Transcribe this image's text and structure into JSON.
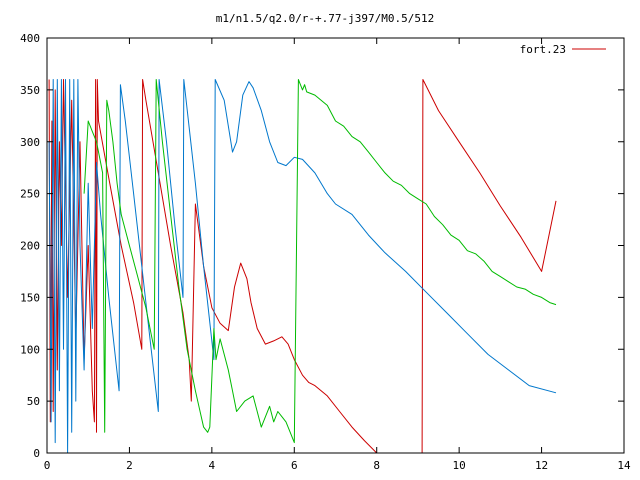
{
  "chart_data": {
    "type": "line",
    "title": "m1/n1.5/q2.0/r-+.77-j397/M0.5/512",
    "xlabel": "",
    "ylabel": "",
    "xlim": [
      0,
      14
    ],
    "ylim": [
      0,
      400
    ],
    "xticks": [
      0,
      2,
      4,
      6,
      8,
      10,
      12,
      14
    ],
    "yticks": [
      0,
      50,
      100,
      150,
      200,
      250,
      300,
      350,
      400
    ],
    "grid": false,
    "legend_position": "top-right",
    "legend": [
      {
        "label": "fort.23",
        "color": "#cc0000"
      }
    ],
    "series": [
      {
        "color": "#cc0000",
        "x": [
          0.05,
          0.08,
          0.12,
          0.15,
          0.2,
          0.25,
          0.3,
          0.35,
          0.4,
          0.5,
          0.6,
          0.7,
          0.8,
          0.9,
          1.0,
          1.1,
          1.15,
          1.18,
          1.2,
          1.22,
          1.25,
          1.5,
          1.8,
          2.1,
          2.3,
          2.32,
          2.4,
          2.7,
          3.0,
          3.3,
          3.45,
          3.5,
          3.6,
          3.8,
          4.0,
          4.2,
          4.4,
          4.55,
          4.7,
          4.85,
          4.95,
          5.1,
          5.3,
          5.5,
          5.7,
          5.85,
          6.0,
          6.2,
          6.35,
          6.5,
          6.8,
          7.1,
          7.4,
          7.7,
          8.0,
          8.4,
          8.8,
          9.1,
          9.12,
          9.5,
          10.0,
          10.5,
          11.0,
          11.5,
          12.0,
          12.35
        ],
        "y": [
          360,
          30,
          320,
          40,
          350,
          80,
          300,
          200,
          360,
          150,
          340,
          110,
          300,
          90,
          200,
          60,
          30,
          360,
          20,
          360,
          320,
          265,
          200,
          145,
          100,
          360,
          340,
          270,
          200,
          135,
          90,
          50,
          240,
          180,
          140,
          125,
          118,
          160,
          183,
          168,
          145,
          120,
          105,
          108,
          112,
          105,
          90,
          75,
          68,
          65,
          55,
          40,
          25,
          12,
          0,
          0,
          0,
          0,
          360,
          330,
          300,
          270,
          238,
          208,
          175,
          243
        ]
      },
      {
        "color": "#0077cc",
        "x": [
          0.05,
          0.1,
          0.15,
          0.2,
          0.25,
          0.3,
          0.35,
          0.4,
          0.45,
          0.5,
          0.55,
          0.6,
          0.65,
          0.7,
          0.75,
          0.8,
          0.9,
          1.0,
          1.1,
          1.2,
          1.3,
          1.5,
          1.75,
          1.78,
          1.9,
          2.1,
          2.3,
          2.5,
          2.7,
          2.72,
          2.9,
          3.1,
          3.3,
          3.32,
          3.6,
          3.8,
          4.05,
          4.08,
          4.3,
          4.5,
          4.6,
          4.75,
          4.9,
          5.0,
          5.2,
          5.4,
          5.6,
          5.8,
          6.0,
          6.2,
          6.5,
          6.8,
          7.0,
          7.4,
          7.8,
          8.2,
          8.7,
          9.2,
          9.7,
          10.2,
          10.7,
          11.2,
          11.7,
          12.35
        ],
        "y": [
          300,
          30,
          360,
          10,
          360,
          60,
          360,
          100,
          360,
          0,
          360,
          20,
          360,
          50,
          360,
          200,
          80,
          260,
          120,
          280,
          230,
          150,
          60,
          355,
          320,
          250,
          180,
          110,
          40,
          360,
          300,
          220,
          150,
          360,
          260,
          180,
          90,
          360,
          340,
          290,
          300,
          345,
          358,
          352,
          330,
          300,
          280,
          277,
          285,
          283,
          270,
          250,
          240,
          230,
          210,
          193,
          175,
          155,
          135,
          115,
          95,
          80,
          65,
          58
        ]
      },
      {
        "color": "#00bb00",
        "x": [
          0.9,
          1.0,
          1.1,
          1.2,
          1.3,
          1.35,
          1.4,
          1.45,
          1.5,
          1.6,
          1.7,
          1.8,
          2.0,
          2.2,
          2.4,
          2.6,
          2.65,
          2.8,
          3.0,
          3.2,
          3.4,
          3.6,
          3.8,
          3.9,
          3.95,
          4.05,
          4.1,
          4.2,
          4.3,
          4.4,
          4.5,
          4.6,
          4.8,
          5.0,
          5.2,
          5.4,
          5.5,
          5.6,
          5.7,
          5.8,
          5.9,
          6.0,
          6.1,
          6.2,
          6.25,
          6.3,
          6.5,
          6.8,
          7.0,
          7.2,
          7.4,
          7.6,
          7.8,
          8.0,
          8.2,
          8.4,
          8.6,
          8.8,
          9.0,
          9.2,
          9.4,
          9.6,
          9.8,
          10.0,
          10.2,
          10.4,
          10.6,
          10.8,
          11.0,
          11.2,
          11.4,
          11.6,
          11.8,
          12.0,
          12.2,
          12.35
        ],
        "y": [
          250,
          320,
          310,
          300,
          280,
          270,
          20,
          340,
          330,
          300,
          260,
          230,
          200,
          170,
          140,
          100,
          360,
          300,
          230,
          160,
          100,
          60,
          25,
          20,
          25,
          120,
          90,
          110,
          95,
          80,
          60,
          40,
          50,
          55,
          25,
          45,
          30,
          40,
          35,
          30,
          20,
          10,
          360,
          350,
          355,
          348,
          345,
          335,
          320,
          315,
          305,
          300,
          290,
          280,
          270,
          262,
          258,
          250,
          245,
          240,
          228,
          220,
          210,
          205,
          195,
          192,
          185,
          175,
          170,
          165,
          160,
          158,
          153,
          150,
          145,
          143
        ]
      }
    ]
  }
}
